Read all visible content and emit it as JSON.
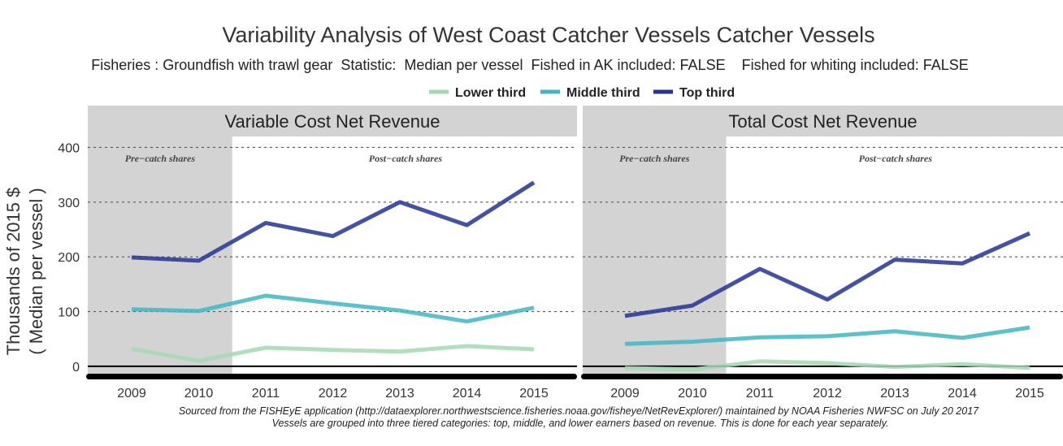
{
  "title": "Variability Analysis of West Coast Catcher Vessels Catcher Vessels",
  "subtitle": "Fisheries : Groundfish with trawl gear  Statistic:  Median per vessel  Fished in AK included: FALSE    Fished for whiting included: FALSE",
  "ylabel_line1": "Thousands of 2015 $",
  "ylabel_line2": "( Median per vessel )",
  "caption_line1": "Sourced from the FISHEyE application (http://dataexplorer.northwestscience.fisheries.noaa.gov/fisheye/NetRevExplorer/) maintained by NOAA Fisheries NWFSC on  July 20 2017",
  "caption_line2": "Vessels are grouped into three tiered categories: top, middle, and lower earners based on revenue. This is done for each year separately.",
  "pre_label": "Pre−catch shares",
  "post_label": "Post−catch shares",
  "colors": {
    "lower": "#a3d9b1",
    "middle": "#41b6c4",
    "top": "#253494",
    "strip": "#d3d3d3",
    "pre_shade": "#d3d3d3"
  },
  "legend": [
    {
      "name": "Lower third",
      "color": "#a3d9b1"
    },
    {
      "name": "Middle third",
      "color": "#41b6c4"
    },
    {
      "name": "Top third",
      "color": "#253494"
    }
  ],
  "chart_data": [
    {
      "type": "line",
      "title": "Variable Cost Net Revenue",
      "x": [
        2009,
        2010,
        2011,
        2012,
        2013,
        2014,
        2015
      ],
      "xticks": [
        "2009",
        "2010",
        "2011",
        "2012",
        "2013",
        "2014",
        "2015"
      ],
      "yticks": [
        "0",
        "100",
        "200",
        "300",
        "400"
      ],
      "ylim": [
        -15,
        420
      ],
      "grid": true,
      "pre_catch_shares_through": 2010,
      "series": [
        {
          "name": "Lower third",
          "values": [
            32,
            10,
            34,
            30,
            27,
            37,
            31
          ]
        },
        {
          "name": "Middle third",
          "values": [
            104,
            101,
            129,
            115,
            102,
            82,
            107
          ]
        },
        {
          "name": "Top third",
          "values": [
            199,
            193,
            262,
            238,
            300,
            258,
            336
          ]
        }
      ]
    },
    {
      "type": "line",
      "title": "Total Cost Net Revenue",
      "x": [
        2009,
        2010,
        2011,
        2012,
        2013,
        2014,
        2015
      ],
      "xticks": [
        "2009",
        "2010",
        "2011",
        "2012",
        "2013",
        "2014",
        "2015"
      ],
      "yticks": [
        "0",
        "100",
        "200",
        "300",
        "400"
      ],
      "ylim": [
        -15,
        420
      ],
      "grid": true,
      "pre_catch_shares_through": 2010,
      "series": [
        {
          "name": "Lower third",
          "values": [
            -3,
            -6,
            9,
            6,
            -1,
            4,
            -3
          ]
        },
        {
          "name": "Middle third",
          "values": [
            41,
            45,
            53,
            55,
            64,
            52,
            71
          ]
        },
        {
          "name": "Top third",
          "values": [
            92,
            111,
            178,
            122,
            195,
            188,
            243
          ]
        }
      ]
    }
  ]
}
